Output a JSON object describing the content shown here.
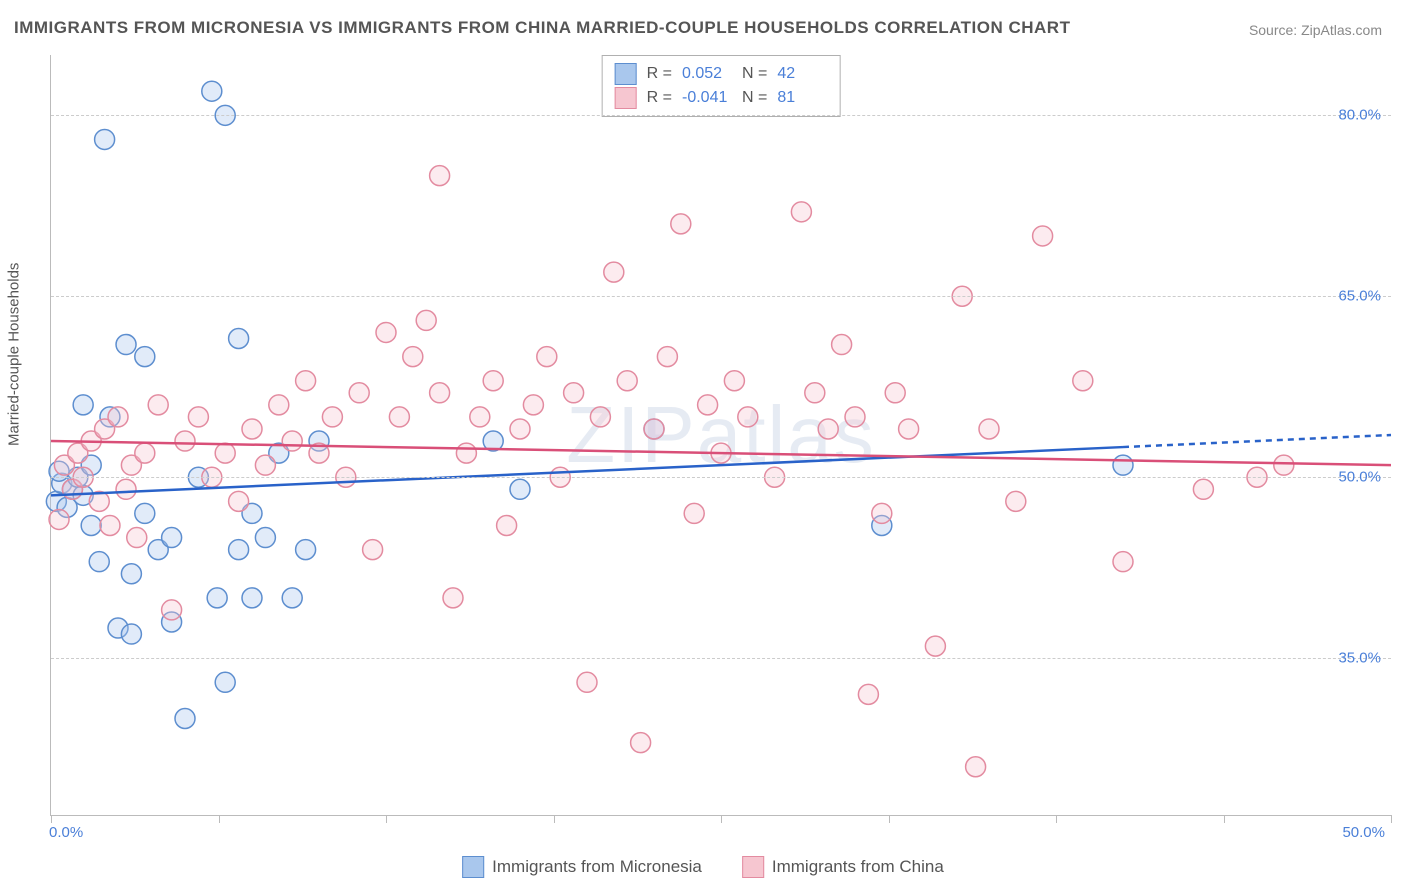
{
  "title": "IMMIGRANTS FROM MICRONESIA VS IMMIGRANTS FROM CHINA MARRIED-COUPLE HOUSEHOLDS CORRELATION CHART",
  "source_label": "Source:",
  "source_value": "ZipAtlas.com",
  "watermark": "ZIPatlas",
  "y_axis_label": "Married-couple Households",
  "chart": {
    "type": "scatter",
    "xlim": [
      0,
      50
    ],
    "ylim": [
      22,
      85
    ],
    "x_ticks": [
      0,
      6.25,
      12.5,
      18.75,
      25,
      31.25,
      37.5,
      43.75,
      50
    ],
    "x_tick_labels": {
      "0": "0.0%",
      "50": "50.0%"
    },
    "y_grid": [
      35,
      50,
      65,
      80
    ],
    "y_tick_labels": {
      "35": "35.0%",
      "50": "50.0%",
      "65": "65.0%",
      "80": "80.0%"
    },
    "background_color": "#ffffff",
    "grid_color": "#cccccc",
    "axis_color": "#bbbbbb",
    "tick_label_color": "#4a7fd8",
    "marker_radius": 10,
    "marker_fill_opacity": 0.35,
    "marker_stroke_width": 1.5,
    "series": [
      {
        "name": "Immigrants from Micronesia",
        "color_fill": "#a9c7ed",
        "color_stroke": "#5d8ecf",
        "r_label": "R =",
        "r_value": "0.052",
        "n_label": "N =",
        "n_value": "42",
        "trend": {
          "x1": 0,
          "y1": 48.5,
          "x2": 40,
          "y2": 52.5,
          "x2_dash": 50,
          "y2_dash": 53.5,
          "color": "#2962c9",
          "width": 2.5
        },
        "points": [
          [
            0.2,
            48
          ],
          [
            0.4,
            49.5
          ],
          [
            0.6,
            47.5
          ],
          [
            0.8,
            49
          ],
          [
            1.0,
            50
          ],
          [
            1.2,
            48.5
          ],
          [
            1.2,
            56
          ],
          [
            1.5,
            46
          ],
          [
            1.5,
            51
          ],
          [
            1.8,
            43
          ],
          [
            2.0,
            78
          ],
          [
            2.2,
            55
          ],
          [
            2.5,
            37.5
          ],
          [
            2.8,
            61
          ],
          [
            3.0,
            42
          ],
          [
            3.0,
            37
          ],
          [
            3.5,
            47
          ],
          [
            3.5,
            60
          ],
          [
            4.0,
            44
          ],
          [
            4.5,
            38
          ],
          [
            4.5,
            45
          ],
          [
            5.0,
            30
          ],
          [
            5.5,
            50
          ],
          [
            6.0,
            82
          ],
          [
            6.2,
            40
          ],
          [
            6.5,
            80
          ],
          [
            6.5,
            33
          ],
          [
            7.0,
            44
          ],
          [
            7.0,
            61.5
          ],
          [
            7.5,
            47
          ],
          [
            7.5,
            40
          ],
          [
            8.0,
            45
          ],
          [
            8.5,
            52
          ],
          [
            9.0,
            40
          ],
          [
            9.5,
            44
          ],
          [
            10.0,
            53
          ],
          [
            16.5,
            53
          ],
          [
            17.5,
            49
          ],
          [
            22.5,
            54
          ],
          [
            31.0,
            46
          ],
          [
            40.0,
            51
          ],
          [
            0.3,
            50.5
          ]
        ]
      },
      {
        "name": "Immigrants from China",
        "color_fill": "#f6c6d0",
        "color_stroke": "#e38ba0",
        "r_label": "R =",
        "r_value": "-0.041",
        "n_label": "N =",
        "n_value": "81",
        "trend": {
          "x1": 0,
          "y1": 53,
          "x2": 50,
          "y2": 51,
          "color": "#d94f78",
          "width": 2.5
        },
        "points": [
          [
            0.3,
            46.5
          ],
          [
            0.5,
            51
          ],
          [
            0.8,
            49
          ],
          [
            1.0,
            52
          ],
          [
            1.2,
            50
          ],
          [
            1.5,
            53
          ],
          [
            1.8,
            48
          ],
          [
            2.0,
            54
          ],
          [
            2.2,
            46
          ],
          [
            2.5,
            55
          ],
          [
            2.8,
            49
          ],
          [
            3.0,
            51
          ],
          [
            3.2,
            45
          ],
          [
            3.5,
            52
          ],
          [
            4.0,
            56
          ],
          [
            4.5,
            39
          ],
          [
            5.0,
            53
          ],
          [
            5.5,
            55
          ],
          [
            6.0,
            50
          ],
          [
            6.5,
            52
          ],
          [
            7.0,
            48
          ],
          [
            7.5,
            54
          ],
          [
            8.0,
            51
          ],
          [
            8.5,
            56
          ],
          [
            9.0,
            53
          ],
          [
            9.5,
            58
          ],
          [
            10.0,
            52
          ],
          [
            10.5,
            55
          ],
          [
            11.0,
            50
          ],
          [
            11.5,
            57
          ],
          [
            12.0,
            44
          ],
          [
            12.5,
            62
          ],
          [
            13.0,
            55
          ],
          [
            13.5,
            60
          ],
          [
            14.0,
            63
          ],
          [
            14.5,
            57
          ],
          [
            14.5,
            75
          ],
          [
            15.0,
            40
          ],
          [
            15.5,
            52
          ],
          [
            16.0,
            55
          ],
          [
            16.5,
            58
          ],
          [
            17.0,
            46
          ],
          [
            17.5,
            54
          ],
          [
            18.0,
            56
          ],
          [
            18.5,
            60
          ],
          [
            19.0,
            50
          ],
          [
            19.5,
            57
          ],
          [
            20.0,
            33
          ],
          [
            20.5,
            55
          ],
          [
            21.0,
            67
          ],
          [
            21.5,
            58
          ],
          [
            22.0,
            28
          ],
          [
            22.5,
            54
          ],
          [
            23.0,
            60
          ],
          [
            23.5,
            71
          ],
          [
            24.0,
            47
          ],
          [
            24.5,
            56
          ],
          [
            25.0,
            52
          ],
          [
            25.5,
            58
          ],
          [
            26.0,
            55
          ],
          [
            27.0,
            50
          ],
          [
            28.0,
            72
          ],
          [
            28.5,
            57
          ],
          [
            29.0,
            54
          ],
          [
            29.5,
            61
          ],
          [
            30.0,
            55
          ],
          [
            30.5,
            32
          ],
          [
            31.0,
            47
          ],
          [
            31.5,
            57
          ],
          [
            32.0,
            54
          ],
          [
            33.0,
            36
          ],
          [
            34.0,
            65
          ],
          [
            34.5,
            26
          ],
          [
            35.0,
            54
          ],
          [
            36.0,
            48
          ],
          [
            37.0,
            70
          ],
          [
            38.5,
            58
          ],
          [
            40.0,
            43
          ],
          [
            43.0,
            49
          ],
          [
            45.0,
            50
          ],
          [
            46.0,
            51
          ]
        ]
      }
    ],
    "bottom_legend": [
      {
        "swatch_fill": "#a9c7ed",
        "swatch_stroke": "#5d8ecf",
        "label": "Immigrants from Micronesia"
      },
      {
        "swatch_fill": "#f6c6d0",
        "swatch_stroke": "#e38ba0",
        "label": "Immigrants from China"
      }
    ]
  }
}
